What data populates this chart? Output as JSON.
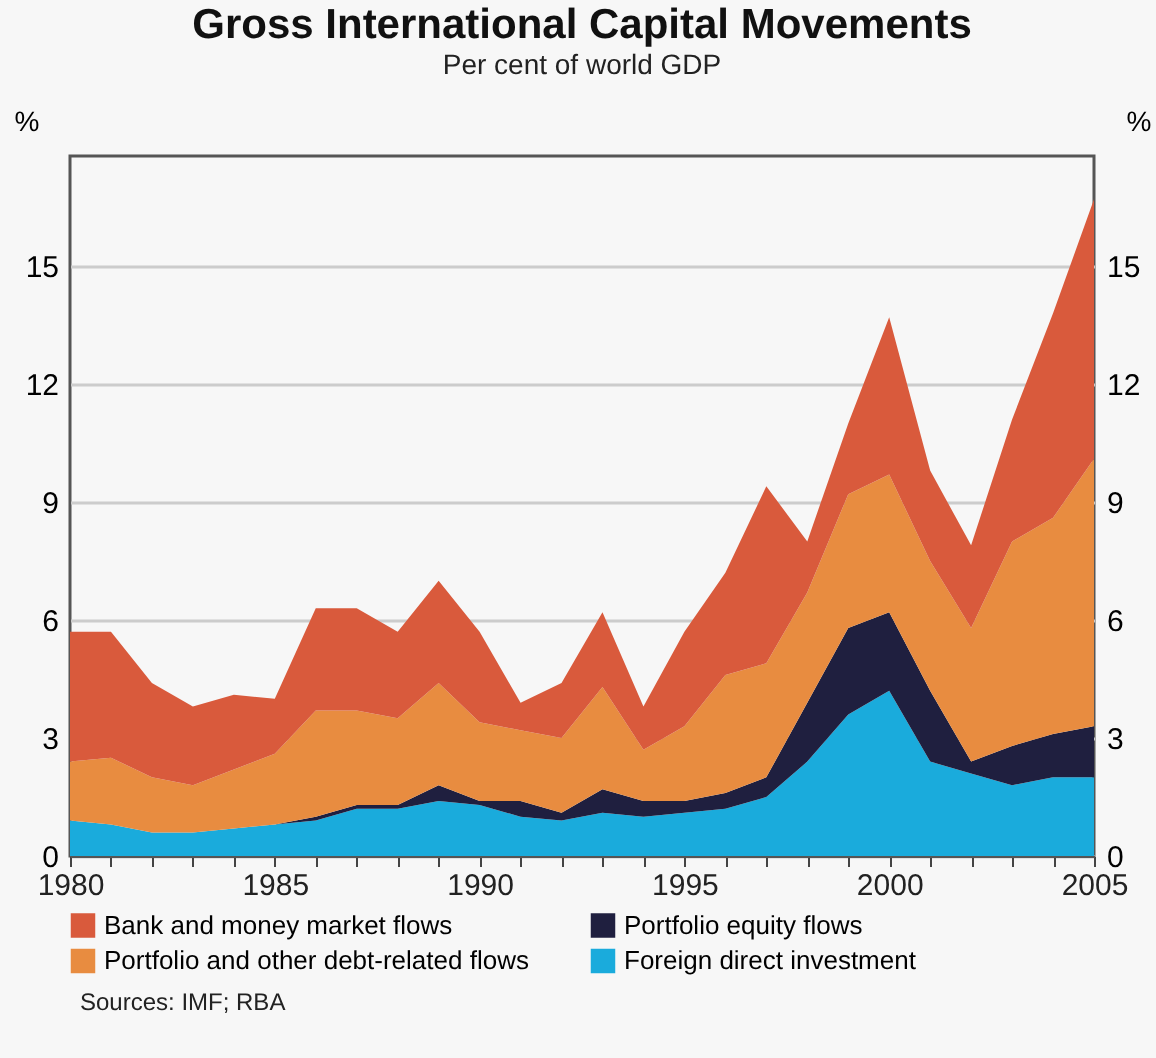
{
  "chart_data": {
    "type": "area",
    "stacked": true,
    "title": "Gross International Capital Movements",
    "subtitle": "Per cent of world GDP",
    "ylabel": "%",
    "y2label": "%",
    "x": [
      1980,
      1981,
      1982,
      1983,
      1984,
      1985,
      1986,
      1987,
      1988,
      1989,
      1990,
      1991,
      1992,
      1993,
      1994,
      1995,
      1996,
      1997,
      1998,
      1999,
      2000,
      2001,
      2002,
      2003,
      2004,
      2005
    ],
    "series": [
      {
        "name": "Foreign direct investment",
        "color": "#1aabdc",
        "values": [
          0.9,
          0.8,
          0.6,
          0.6,
          0.7,
          0.8,
          0.9,
          1.2,
          1.2,
          1.4,
          1.3,
          1.0,
          0.9,
          1.1,
          1.0,
          1.1,
          1.2,
          1.5,
          2.4,
          3.6,
          4.2,
          2.4,
          2.1,
          1.8,
          2.0,
          2.0
        ]
      },
      {
        "name": "Portfolio equity flows",
        "color": "#1f1f3f",
        "values": [
          0,
          0,
          0,
          0,
          0,
          0,
          0.1,
          0.1,
          0.1,
          0.4,
          0.1,
          0.4,
          0.2,
          0.6,
          0.4,
          0.3,
          0.4,
          0.5,
          1.5,
          2.2,
          2.0,
          1.8,
          0.3,
          1.0,
          1.1,
          1.3
        ]
      },
      {
        "name": "Portfolio and other debt-related flows",
        "color": "#e88c40",
        "values": [
          1.5,
          1.7,
          1.4,
          1.2,
          1.5,
          1.8,
          2.7,
          2.4,
          2.2,
          2.6,
          2.0,
          1.8,
          1.9,
          2.6,
          1.3,
          1.9,
          3.0,
          2.9,
          2.8,
          3.4,
          3.5,
          3.3,
          3.4,
          5.2,
          5.5,
          6.8
        ]
      },
      {
        "name": "Bank and money market flows",
        "color": "#d95a3c",
        "values": [
          3.3,
          3.2,
          2.4,
          2.0,
          1.9,
          1.4,
          2.6,
          2.6,
          2.2,
          2.6,
          2.3,
          0.7,
          1.4,
          1.9,
          1.1,
          2.4,
          2.6,
          4.5,
          1.3,
          1.8,
          4.0,
          2.3,
          2.1,
          3.1,
          5.2,
          6.6
        ]
      }
    ],
    "xlim": [
      1980,
      2005
    ],
    "xticks": [
      1980,
      {
        "value": 1981,
        "label": null
      },
      {
        "value": 1982,
        "label": null
      },
      {
        "value": 1983,
        "label": null
      },
      {
        "value": 1984,
        "label": null
      },
      1985,
      {
        "value": 1986,
        "label": null
      },
      {
        "value": 1987,
        "label": null
      },
      {
        "value": 1988,
        "label": null
      },
      {
        "value": 1989,
        "label": null
      },
      1990,
      {
        "value": 1991,
        "label": null
      },
      {
        "value": 1992,
        "label": null
      },
      {
        "value": 1993,
        "label": null
      },
      {
        "value": 1994,
        "label": null
      },
      1995,
      {
        "value": 1996,
        "label": null
      },
      {
        "value": 1997,
        "label": null
      },
      {
        "value": 1998,
        "label": null
      },
      {
        "value": 1999,
        "label": null
      },
      2000,
      {
        "value": 2001,
        "label": null
      },
      {
        "value": 2002,
        "label": null
      },
      {
        "value": 2003,
        "label": null
      },
      {
        "value": 2004,
        "label": null
      },
      2005
    ],
    "ylim": [
      0,
      17.8
    ],
    "yticks": [
      0,
      3,
      6,
      9,
      12,
      15
    ],
    "y2lim": [
      0,
      17.8
    ],
    "y2ticks": [
      0,
      3,
      6,
      9,
      12,
      15
    ],
    "grid": "y",
    "legend": "bottom",
    "annotations": [
      "Sources: IMF; RBA"
    ]
  }
}
